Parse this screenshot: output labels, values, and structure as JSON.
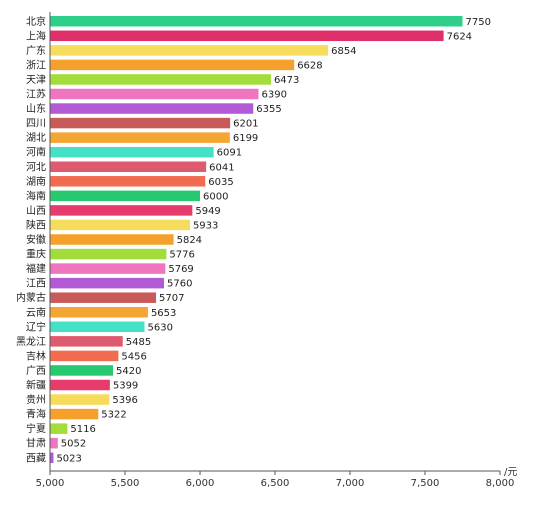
{
  "chart_data": {
    "type": "bar",
    "orientation": "horizontal",
    "categories": [
      "北京",
      "上海",
      "广东",
      "浙江",
      "天津",
      "江苏",
      "山东",
      "四川",
      "湖北",
      "河南",
      "河北",
      "湖南",
      "海南",
      "山西",
      "陕西",
      "安徽",
      "重庆",
      "福建",
      "江西",
      "内蒙古",
      "云南",
      "辽宁",
      "黑龙江",
      "吉林",
      "广西",
      "新疆",
      "贵州",
      "青海",
      "宁夏",
      "甘肃",
      "西藏"
    ],
    "values": [
      7750,
      7624,
      6854,
      6628,
      6473,
      6390,
      6355,
      6201,
      6199,
      6091,
      6041,
      6035,
      6000,
      5949,
      5933,
      5824,
      5776,
      5769,
      5760,
      5707,
      5653,
      5630,
      5485,
      5456,
      5420,
      5399,
      5396,
      5322,
      5116,
      5052,
      5023
    ],
    "colors": [
      "#2ecf8a",
      "#e0306a",
      "#f5dc5c",
      "#f5a02d",
      "#a2dd3c",
      "#f075c0",
      "#b25ad6",
      "#c85a5a",
      "#f5a533",
      "#45e0c8",
      "#de5a6e",
      "#f06b4f",
      "#27c970",
      "#e63c6d",
      "#f5dc5c",
      "#f5a02d",
      "#a2dd3c",
      "#f075c0",
      "#b25ad6",
      "#c85a5a",
      "#f5a533",
      "#45e0c8",
      "#de5a6e",
      "#f06b4f",
      "#27c970",
      "#e63c6d",
      "#f5dc5c",
      "#f5a02d",
      "#a2dd3c",
      "#f075c0",
      "#b25ad6"
    ],
    "xlim": [
      5000,
      8000
    ],
    "xticks": [
      "5,000",
      "5,500",
      "6,000",
      "6,500",
      "7,000",
      "7,500",
      "8,000"
    ],
    "xlabel": "/元",
    "grid": false,
    "legend": "none"
  }
}
